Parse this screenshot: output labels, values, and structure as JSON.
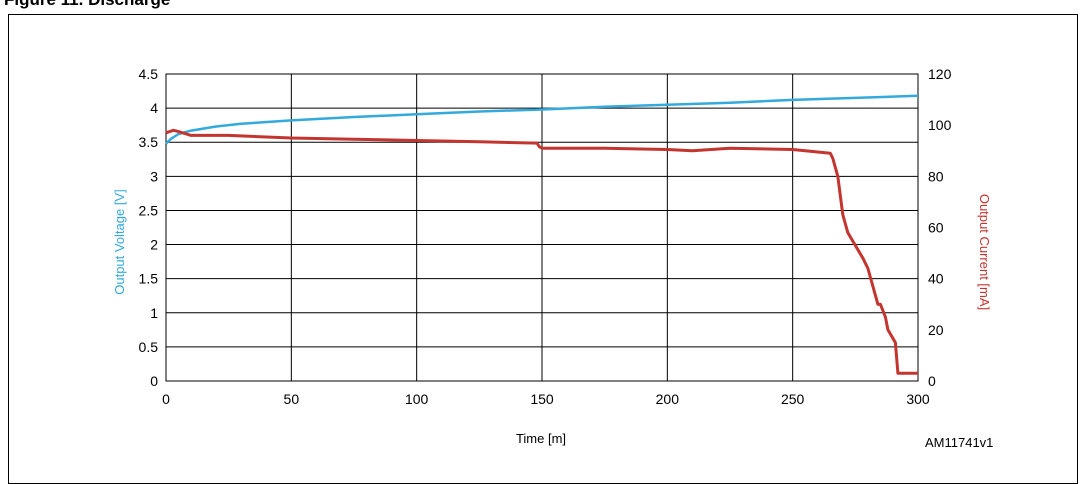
{
  "figure": {
    "title_fragment": "Figure 11. Discharge",
    "reference_code": "AM11741v1"
  },
  "colors": {
    "voltage": "#33a9dc",
    "current": "#c4352f",
    "grid": "#000000"
  },
  "chart_data": {
    "type": "line",
    "title": "",
    "xlabel": "Time [m]",
    "ylabel_left": "Output Voltage [V]",
    "ylabel_right": "Output Current [mA]",
    "xlim": [
      0,
      300
    ],
    "ylim_left": [
      0,
      4.5
    ],
    "ylim_right": [
      0,
      120
    ],
    "x_ticks": [
      "0",
      "50",
      "100",
      "150",
      "200",
      "250",
      "300"
    ],
    "y_left_ticks": [
      "0",
      "0.5",
      "1",
      "1.5",
      "2",
      "2.5",
      "3",
      "3.5",
      "4",
      "4.5"
    ],
    "y_right_ticks": [
      "0",
      "20",
      "40",
      "60",
      "80",
      "100",
      "120"
    ],
    "grid": true,
    "legend": "none",
    "series": [
      {
        "axis": "left",
        "color": "#33a9dc",
        "x": [
          0,
          2,
          5,
          10,
          20,
          30,
          50,
          75,
          100,
          125,
          150,
          175,
          200,
          225,
          250,
          275,
          300
        ],
        "y": [
          3.48,
          3.55,
          3.62,
          3.67,
          3.73,
          3.77,
          3.82,
          3.87,
          3.91,
          3.95,
          3.98,
          4.02,
          4.05,
          4.08,
          4.12,
          4.15,
          4.18
        ]
      },
      {
        "axis": "right",
        "color": "#c4352f",
        "x": [
          0,
          3,
          5,
          10,
          25,
          50,
          75,
          100,
          125,
          148,
          149,
          150,
          175,
          200,
          210,
          225,
          250,
          265,
          266,
          268,
          270,
          272,
          275,
          278,
          280,
          284,
          285,
          287,
          288,
          291,
          292,
          295,
          300
        ],
        "y": [
          97,
          98,
          97.5,
          96,
          96,
          95,
          94.5,
          94,
          93.5,
          93,
          91.5,
          91,
          91,
          90.5,
          90,
          91,
          90.5,
          89,
          87,
          80,
          65,
          58,
          53,
          48,
          44,
          30,
          30,
          25,
          20,
          15,
          3,
          3,
          3
        ]
      }
    ]
  }
}
